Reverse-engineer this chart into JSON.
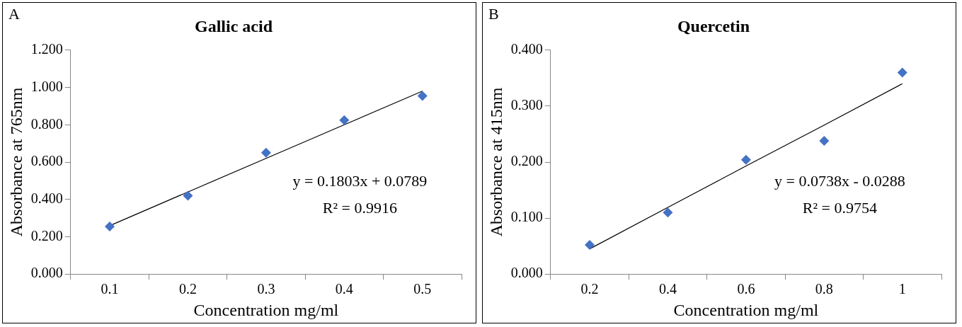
{
  "chart_data": [
    {
      "type": "scatter",
      "title": "Gallic acid",
      "xlabel": "Concentration mg/ml",
      "ylabel": "Absorbance at 765nm",
      "categories": [
        "0.1",
        "0.2",
        "0.3",
        "0.4",
        "0.5"
      ],
      "series": [
        {
          "color": "#4472c4",
          "marker": "diamond",
          "values": [
            0.255,
            0.42,
            0.65,
            0.825,
            0.955
          ]
        },
        {
          "type": "line",
          "color": "#000000",
          "marker": "none",
          "line_style": "solid",
          "values": [
            0.259,
            0.44,
            0.62,
            0.8,
            0.98
          ]
        }
      ],
      "ylim": [
        0,
        1.2
      ],
      "yticks": [
        {
          "value": 0,
          "label": "0.000"
        },
        {
          "value": 0.2,
          "label": "0.200"
        },
        {
          "value": 0.4,
          "label": "0.400"
        },
        {
          "value": 0.6,
          "label": "0.600"
        },
        {
          "value": 0.8,
          "label": "0.800"
        },
        {
          "value": 1.0,
          "label": "1.000"
        },
        {
          "value": 1.2,
          "label": "1.200"
        }
      ],
      "grid": false,
      "legend": false,
      "annotations": [
        "A",
        "y = 0.1803x + 0.0789",
        "R² = 0.9916"
      ]
    },
    {
      "type": "scatter",
      "title": "Quercetin",
      "xlabel": "Concentration mg/ml",
      "ylabel": "Absorbance at 415nm",
      "categories": [
        "0.2",
        "0.4",
        "0.6",
        "0.8",
        "1"
      ],
      "series": [
        {
          "color": "#4472c4",
          "marker": "diamond",
          "values": [
            0.052,
            0.11,
            0.204,
            0.238,
            0.36
          ]
        },
        {
          "type": "line",
          "color": "#000000",
          "marker": "none",
          "line_style": "solid",
          "values": [
            0.045,
            0.119,
            0.193,
            0.266,
            0.34
          ]
        }
      ],
      "ylim": [
        0,
        0.4
      ],
      "yticks": [
        {
          "value": 0,
          "label": "0.000"
        },
        {
          "value": 0.1,
          "label": "0.100"
        },
        {
          "value": 0.2,
          "label": "0.200"
        },
        {
          "value": 0.3,
          "label": "0.300"
        },
        {
          "value": 0.4,
          "label": "0.400"
        }
      ],
      "grid": false,
      "legend": false,
      "annotations": [
        "B",
        "y = 0.0738x - 0.0288",
        "R² = 0.9754"
      ]
    }
  ]
}
